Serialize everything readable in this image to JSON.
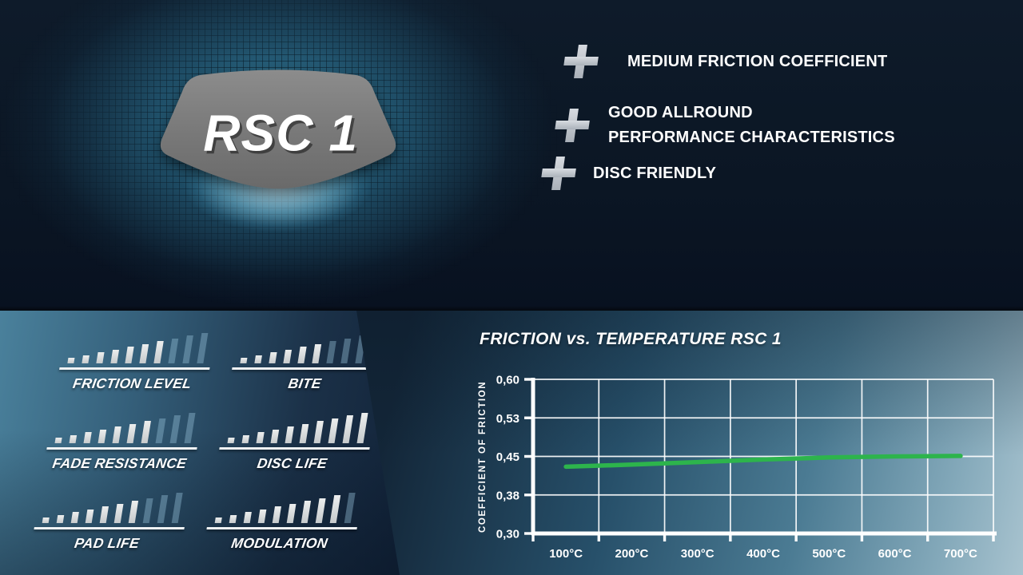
{
  "logo": {
    "text": "RSC 1"
  },
  "features": {
    "items": [
      {
        "lines": [
          "MEDIUM FRICTION COEFFICIENT"
        ]
      },
      {
        "lines": [
          "GOOD ALLROUND",
          "PERFORMANCE CHARACTERISTICS"
        ]
      },
      {
        "lines": [
          "DISC FRIENDLY"
        ]
      }
    ]
  },
  "ratings": {
    "scale_total": 10,
    "items": [
      {
        "label": "FRICTION LEVEL",
        "value": 7
      },
      {
        "label": "BITE",
        "value": 6
      },
      {
        "label": "FADE RESISTANCE",
        "value": 7
      },
      {
        "label": "DISC LIFE",
        "value": 10
      },
      {
        "label": "PAD LIFE",
        "value": 7
      },
      {
        "label": "MODULATION",
        "value": 9
      }
    ]
  },
  "chart_data": {
    "type": "line",
    "title": "FRICTION vs. TEMPERATURE RSC 1",
    "ylabel": "COEFFICIENT OF FRICTION",
    "xlabel": "",
    "x_tick_labels": [
      "100°C",
      "200°C",
      "300°C",
      "400°C",
      "500°C",
      "600°C",
      "700°C"
    ],
    "y_tick_labels": [
      "0,60",
      "0,53",
      "0,45",
      "0,38",
      "0,30"
    ],
    "ylim": [
      0.3,
      0.6
    ],
    "grid": true,
    "legend": "none",
    "series": [
      {
        "name": "RSC 1",
        "color": "#2db44c",
        "x_celsius": [
          100,
          200,
          300,
          400,
          500,
          600,
          700
        ],
        "values": [
          0.43,
          0.434,
          0.439,
          0.444,
          0.448,
          0.45,
          0.451
        ]
      }
    ]
  },
  "colors": {
    "top_background": "#0b1624",
    "glow_teal": "#3e94b6",
    "panel_teal": "#4a819c",
    "panel_navy": "#122339",
    "corner_light": "#a8c3cf",
    "bar_filled": "#d8dadc",
    "bar_empty": "#7da4bd",
    "pad_gray": "#7b7b7b",
    "line_green": "#2db44c",
    "text_white": "#ffffff"
  }
}
